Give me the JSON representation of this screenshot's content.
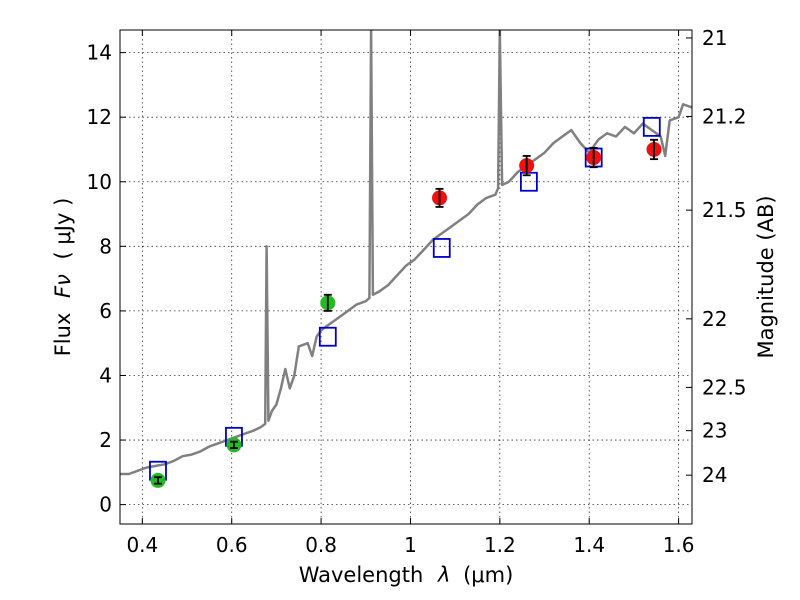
{
  "chart_data": {
    "type": "scatter",
    "xlabel_prefix": "Wavelength",
    "xlabel_symbol": "λ",
    "xlabel_units": "(μm)",
    "ylabel_left": "Flux",
    "ylabel_symbol": "Fν",
    "ylabel_units": "( μJy )",
    "ylabel_right": "Magnitude (AB)",
    "xlim": [
      0.35,
      1.63
    ],
    "ylim": [
      -0.6,
      14.7
    ],
    "grid": true,
    "x_ticks": [
      0.4,
      0.6,
      0.8,
      1.0,
      1.2,
      1.4,
      1.6
    ],
    "x_tick_labels": [
      "0.4",
      "0.6",
      "0.8",
      "1",
      "1.2",
      "1.4",
      "1.6"
    ],
    "y_ticks": [
      0,
      2,
      4,
      6,
      8,
      10,
      12,
      14
    ],
    "y_tick_labels": [
      "0",
      "2",
      "4",
      "6",
      "8",
      "10",
      "12",
      "14"
    ],
    "right_ticks": [
      {
        "label": "21",
        "mag": 21.0
      },
      {
        "label": "21.2",
        "mag": 21.2
      },
      {
        "label": "21.5",
        "mag": 21.5
      },
      {
        "label": "22",
        "mag": 22.0
      },
      {
        "label": "22.5",
        "mag": 22.5
      },
      {
        "label": "23",
        "mag": 23.0
      },
      {
        "label": "24",
        "mag": 24.0
      }
    ],
    "series": [
      {
        "name": "model spectrum",
        "kind": "line",
        "color": "#808080",
        "points": [
          [
            0.35,
            0.95
          ],
          [
            0.37,
            0.95
          ],
          [
            0.39,
            1.05
          ],
          [
            0.41,
            1.15
          ],
          [
            0.43,
            1.2
          ],
          [
            0.45,
            1.25
          ],
          [
            0.47,
            1.35
          ],
          [
            0.49,
            1.5
          ],
          [
            0.51,
            1.55
          ],
          [
            0.53,
            1.65
          ],
          [
            0.55,
            1.8
          ],
          [
            0.57,
            1.9
          ],
          [
            0.59,
            2.0
          ],
          [
            0.61,
            2.1
          ],
          [
            0.63,
            2.2
          ],
          [
            0.65,
            2.3
          ],
          [
            0.665,
            2.4
          ],
          [
            0.675,
            2.5
          ],
          [
            0.678,
            8.0
          ],
          [
            0.682,
            2.6
          ],
          [
            0.69,
            2.9
          ],
          [
            0.7,
            3.1
          ],
          [
            0.71,
            3.6
          ],
          [
            0.72,
            4.2
          ],
          [
            0.73,
            3.6
          ],
          [
            0.74,
            4.0
          ],
          [
            0.75,
            4.9
          ],
          [
            0.77,
            5.0
          ],
          [
            0.78,
            4.6
          ],
          [
            0.79,
            5.2
          ],
          [
            0.8,
            5.4
          ],
          [
            0.82,
            5.6
          ],
          [
            0.84,
            5.8
          ],
          [
            0.86,
            6.0
          ],
          [
            0.88,
            6.2
          ],
          [
            0.9,
            6.3
          ],
          [
            0.908,
            6.4
          ],
          [
            0.912,
            14.7
          ],
          [
            0.916,
            6.5
          ],
          [
            0.93,
            6.6
          ],
          [
            0.95,
            6.8
          ],
          [
            0.97,
            7.1
          ],
          [
            0.99,
            7.4
          ],
          [
            1.01,
            7.6
          ],
          [
            1.03,
            7.9
          ],
          [
            1.05,
            8.2
          ],
          [
            1.07,
            8.4
          ],
          [
            1.09,
            8.6
          ],
          [
            1.11,
            8.8
          ],
          [
            1.13,
            9.0
          ],
          [
            1.15,
            9.3
          ],
          [
            1.17,
            9.5
          ],
          [
            1.19,
            9.6
          ],
          [
            1.196,
            9.8
          ],
          [
            1.2,
            14.7
          ],
          [
            1.205,
            9.9
          ],
          [
            1.22,
            10.0
          ],
          [
            1.24,
            10.3
          ],
          [
            1.26,
            10.5
          ],
          [
            1.28,
            10.7
          ],
          [
            1.3,
            10.9
          ],
          [
            1.32,
            11.2
          ],
          [
            1.34,
            11.4
          ],
          [
            1.36,
            11.6
          ],
          [
            1.38,
            11.2
          ],
          [
            1.4,
            10.9
          ],
          [
            1.42,
            11.3
          ],
          [
            1.44,
            11.5
          ],
          [
            1.46,
            11.4
          ],
          [
            1.48,
            11.7
          ],
          [
            1.5,
            11.5
          ],
          [
            1.52,
            11.8
          ],
          [
            1.54,
            11.6
          ],
          [
            1.56,
            11.4
          ],
          [
            1.57,
            10.8
          ],
          [
            1.58,
            11.9
          ],
          [
            1.6,
            12.0
          ],
          [
            1.61,
            12.4
          ],
          [
            1.63,
            12.3
          ]
        ]
      },
      {
        "name": "model photometry",
        "kind": "open-square",
        "color": "#0000cc",
        "points": [
          [
            0.435,
            1.05
          ],
          [
            0.605,
            2.1
          ],
          [
            0.815,
            5.2
          ],
          [
            1.07,
            7.95
          ],
          [
            1.265,
            10.0
          ],
          [
            1.41,
            10.75
          ],
          [
            1.54,
            11.7
          ]
        ]
      },
      {
        "name": "observed (green)",
        "kind": "filled-circle",
        "color": "#22bb22",
        "points": [
          [
            0.435,
            0.75
          ],
          [
            0.605,
            1.85
          ],
          [
            0.815,
            6.25
          ]
        ],
        "errors": [
          0.1,
          0.1,
          0.25
        ]
      },
      {
        "name": "observed (red)",
        "kind": "filled-circle",
        "color": "#ee1111",
        "points": [
          [
            1.065,
            9.5
          ],
          [
            1.26,
            10.5
          ],
          [
            1.41,
            10.75
          ],
          [
            1.545,
            11.0
          ]
        ],
        "errors": [
          0.28,
          0.3,
          0.3,
          0.3
        ]
      }
    ]
  }
}
